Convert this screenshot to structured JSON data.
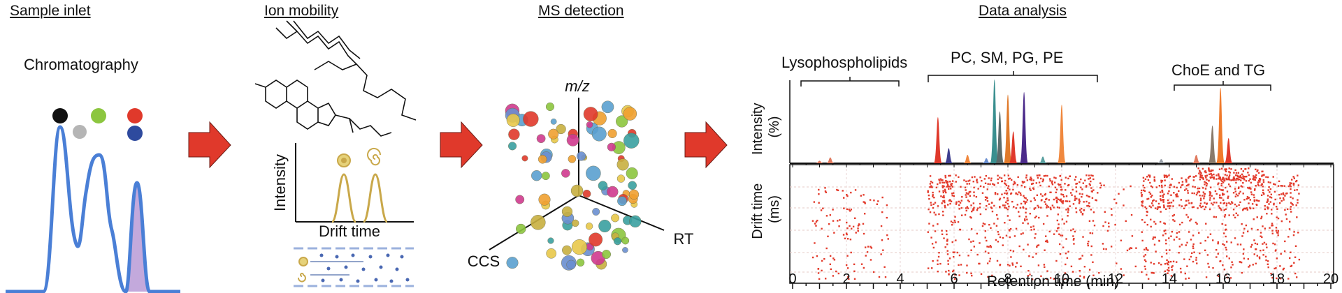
{
  "stages": {
    "sample_inlet": "Sample inlet",
    "ion_mobility": "Ion mobility",
    "ms_detection": "MS detection",
    "data_analysis": "Data analysis"
  },
  "sample_inlet": {
    "label": "Chromatography"
  },
  "ion_mobility": {
    "y_label": "Intensity",
    "x_label": "Drift time"
  },
  "ms_detection": {
    "axis_z": "m/z",
    "axis_left": "CCS",
    "axis_right": "RT"
  },
  "data_analysis": {
    "groups": [
      "Lysophospholipids",
      "PC, SM, PG, PE",
      "ChoE and TG"
    ],
    "top_ylabel": "Intensity (%)",
    "bottom_ylabel": "Drift time (ms)",
    "xlabel": "Retention time (min)",
    "xticks": [
      "0",
      "2",
      "4",
      "6",
      "8",
      "10",
      "12",
      "14",
      "16",
      "18",
      "20"
    ]
  },
  "colors": {
    "accent_red": "#e0392b",
    "chrom_blue": "#4a7fd6",
    "peak_fill": "#b99ad6",
    "ion_gold": "#c9a84a",
    "dot_red": "#e33b2c"
  },
  "chart_data": {
    "type": "area",
    "xlabel": "Retention time (min)",
    "ylabel": "Intensity (%)",
    "xlim": [
      0,
      20
    ],
    "peaks": [
      {
        "rt": 1.0,
        "height": 0.03
      },
      {
        "rt": 1.4,
        "height": 0.07
      },
      {
        "rt": 5.4,
        "height": 0.55
      },
      {
        "rt": 5.8,
        "height": 0.18
      },
      {
        "rt": 6.5,
        "height": 0.1
      },
      {
        "rt": 7.2,
        "height": 0.06
      },
      {
        "rt": 7.5,
        "height": 1.0
      },
      {
        "rt": 7.7,
        "height": 0.62
      },
      {
        "rt": 8.0,
        "height": 0.82
      },
      {
        "rt": 8.2,
        "height": 0.38
      },
      {
        "rt": 8.6,
        "height": 0.85
      },
      {
        "rt": 9.3,
        "height": 0.08
      },
      {
        "rt": 10.0,
        "height": 0.7
      },
      {
        "rt": 13.7,
        "height": 0.05
      },
      {
        "rt": 15.0,
        "height": 0.1
      },
      {
        "rt": 15.6,
        "height": 0.45
      },
      {
        "rt": 15.9,
        "height": 0.9
      },
      {
        "rt": 16.2,
        "height": 0.3
      }
    ]
  }
}
